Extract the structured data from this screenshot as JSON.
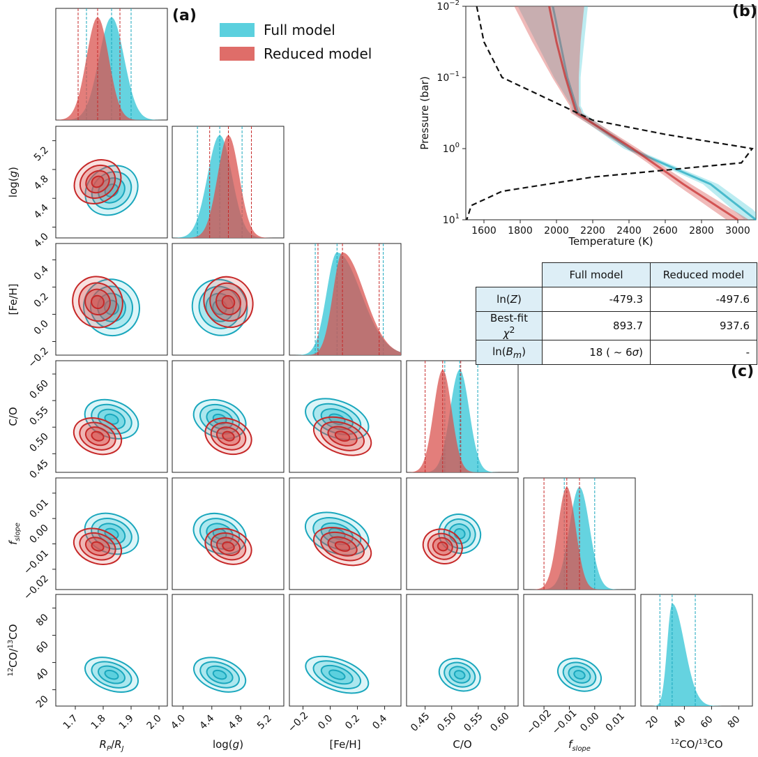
{
  "colors": {
    "full": "#3ec8d8",
    "reduced": "#d9534f",
    "full_line": "#1aa7bd",
    "reduced_line": "#c62828"
  },
  "panel_labels": {
    "a": "(a)",
    "b": "(b)",
    "c": "(c)"
  },
  "legend": {
    "full": "Full model",
    "reduced": "Reduced model"
  },
  "chart_data": [
    {
      "type": "corner",
      "parameters": [
        {
          "label": "R_P/R_J",
          "ticks": [
            "1.7",
            "1.8",
            "1.9",
            "2.0"
          ],
          "range": [
            1.63,
            2.03
          ]
        },
        {
          "label": "log(g)",
          "ticks": [
            "4.0",
            "4.4",
            "4.8",
            "5.2"
          ],
          "range": [
            3.85,
            5.4
          ]
        },
        {
          "label": "[Fe/H]",
          "ticks": [
            "−0.2",
            "0.0",
            "0.2",
            "0.4"
          ],
          "range": [
            -0.3,
            0.52
          ]
        },
        {
          "label": "C/O",
          "ticks": [
            "0.45",
            "0.50",
            "0.55",
            "0.60"
          ],
          "range": [
            0.415,
            0.625
          ]
        },
        {
          "label": "f_slope",
          "ticks": [
            "−0.02",
            "−0.01",
            "0.00",
            "0.01"
          ],
          "range": [
            -0.028,
            0.016
          ]
        },
        {
          "label": "12CO/13CO",
          "ticks": [
            "20",
            "40",
            "60",
            "80"
          ],
          "range": [
            8,
            90
          ]
        }
      ],
      "series": [
        {
          "name": "Full model",
          "median": [
            1.83,
            4.51,
            0.05,
            0.515,
            -0.006,
            31
          ],
          "lower": [
            1.74,
            4.2,
            -0.11,
            0.487,
            -0.012,
            22
          ],
          "upper": [
            1.9,
            4.82,
            0.39,
            0.549,
            0.0,
            48
          ],
          "sigma": [
            0.045,
            0.17,
            0.11,
            0.018,
            0.004,
            6
          ]
        },
        {
          "name": "Reduced model",
          "median": [
            1.78,
            4.63,
            0.09,
            0.483,
            -0.011
          ],
          "lower": [
            1.71,
            4.37,
            -0.09,
            0.45,
            -0.02
          ],
          "upper": [
            1.86,
            4.95,
            0.36,
            0.517,
            -0.006
          ],
          "sigma": [
            0.04,
            0.15,
            0.1,
            0.017,
            0.0035
          ]
        }
      ],
      "axis_labels": {
        "y": [
          "log(g)",
          "[Fe/H]",
          "C/O",
          "f_slope",
          "12CO/13CO"
        ],
        "x": [
          "R_P/R_J",
          "log(g)",
          "[Fe/H]",
          "C/O",
          "f_slope",
          "12CO/13CO"
        ]
      }
    },
    {
      "type": "line",
      "xlabel": "Temperature (K)",
      "ylabel": "Pressure (bar)",
      "xlim": [
        1500,
        3100
      ],
      "ylim_log": [
        -2,
        1
      ],
      "xticks": [
        "1600",
        "1800",
        "2000",
        "2200",
        "2400",
        "2600",
        "2800",
        "3000"
      ],
      "yticks": [
        {
          "base": "10",
          "exp": "−2"
        },
        {
          "base": "10",
          "exp": "−1"
        },
        {
          "base": "10",
          "exp": "0"
        },
        {
          "base": "10",
          "exp": "1"
        }
      ],
      "series": [
        {
          "name": "Full model",
          "T_at_logP": [
            [
              -2,
              1980
            ],
            [
              -1.5,
              2020
            ],
            [
              -1,
              2060
            ],
            [
              -0.5,
              2120
            ],
            [
              0,
              2400
            ],
            [
              0.5,
              2850
            ],
            [
              1,
              3100
            ]
          ]
        },
        {
          "name": "Reduced model",
          "T_at_logP": [
            [
              -2,
              1960
            ],
            [
              -1.5,
              2000
            ],
            [
              -1,
              2050
            ],
            [
              -0.5,
              2110
            ],
            [
              0,
              2420
            ],
            [
              0.5,
              2700
            ],
            [
              1,
              3000
            ]
          ]
        },
        {
          "name": "contribution",
          "style": "dashed",
          "T_at_logP": [
            [
              -2,
              1560
            ],
            [
              -1.5,
              1600
            ],
            [
              -1,
              1700
            ],
            [
              -0.7,
              1950
            ],
            [
              -0.4,
              2200
            ],
            [
              -0.2,
              2600
            ],
            [
              0,
              3080
            ],
            [
              0.2,
              3020
            ],
            [
              0.4,
              2200
            ],
            [
              0.6,
              1700
            ],
            [
              0.8,
              1530
            ],
            [
              1,
              1505
            ]
          ]
        }
      ]
    },
    {
      "type": "table",
      "columns": [
        "Full model",
        "Reduced model"
      ],
      "rows": [
        {
          "label": "ln(Z)",
          "values": [
            "-479.3",
            "-497.6"
          ]
        },
        {
          "label": "Best-fit χ²",
          "values": [
            "893.7",
            "937.6"
          ]
        },
        {
          "label": "ln(B_m)",
          "values": [
            "18 (~6σ)",
            "-"
          ]
        }
      ]
    }
  ]
}
